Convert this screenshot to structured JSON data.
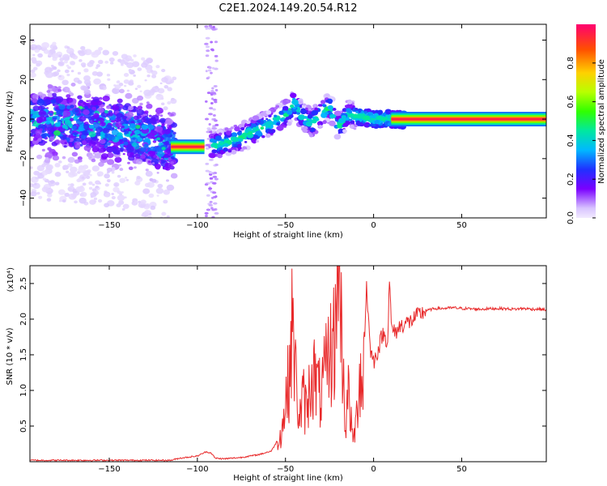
{
  "title": "C2E1.2024.149.20.54.R12",
  "chart_data": [
    {
      "type": "heatmap",
      "xlabel": "Height of straight line (km)",
      "ylabel": "Frequency (Hz)",
      "xlim": [
        -195,
        98
      ],
      "ylim": [
        -50,
        48
      ],
      "xticks": [
        -150,
        -100,
        -50,
        0,
        50
      ],
      "yticks": [
        -40,
        -20,
        0,
        20,
        40
      ],
      "colorbar": {
        "label": "Normalized spectral amplitude",
        "range": [
          0,
          1
        ],
        "ticks": [
          0.0,
          0.2,
          0.4,
          0.6,
          0.8
        ]
      },
      "ridge": [
        {
          "x": -195,
          "y": 0
        },
        {
          "x": -160,
          "y": -3
        },
        {
          "x": -140,
          "y": -6
        },
        {
          "x": -115,
          "y": -14
        },
        {
          "x": -96,
          "y": -14
        },
        {
          "x": -90,
          "y": -13
        },
        {
          "x": -80,
          "y": -11
        },
        {
          "x": -70,
          "y": -7
        },
        {
          "x": -60,
          "y": -3
        },
        {
          "x": -50,
          "y": 2
        },
        {
          "x": -45,
          "y": 8
        },
        {
          "x": -40,
          "y": 1
        },
        {
          "x": -35,
          "y": -2
        },
        {
          "x": -30,
          "y": 3
        },
        {
          "x": -25,
          "y": 6
        },
        {
          "x": -20,
          "y": -4
        },
        {
          "x": -15,
          "y": 2
        },
        {
          "x": -10,
          "y": 2
        },
        {
          "x": 0,
          "y": 0
        },
        {
          "x": 10,
          "y": 0
        },
        {
          "x": 20,
          "y": 0
        },
        {
          "x": 98,
          "y": 0
        }
      ],
      "bands": [
        {
          "x": [
            -115,
            -96
          ],
          "y": -14,
          "amplitude": 0.95
        },
        {
          "x": [
            10,
            98
          ],
          "y": 0,
          "amplitude": 0.95
        }
      ]
    },
    {
      "type": "line",
      "xlabel": "Height of straight line (km)",
      "ylabel": "SNR (10 * v/v)",
      "yscale_label": "(x10⁴)",
      "xlim": [
        -195,
        98
      ],
      "ylim": [
        0,
        2.75
      ],
      "xticks": [
        -150,
        -100,
        -50,
        0,
        50
      ],
      "yticks": [
        0.5,
        1.0,
        1.5,
        2.0,
        2.5
      ],
      "ytick_labels": [
        "0.5",
        "1.0",
        "1.5",
        "2.0",
        "2.5"
      ],
      "color": "#e8292a",
      "series": [
        {
          "x": [
            -195,
            -150,
            -115,
            -110,
            -100,
            -95,
            -92,
            -90,
            -85,
            -75,
            -65,
            -58,
            -55,
            -52,
            -50,
            -48,
            -46,
            -44,
            -42,
            -40,
            -38,
            -35,
            -30,
            -25,
            -22,
            -20,
            -18,
            -16,
            -14,
            -12,
            -10,
            -8,
            -6,
            -4,
            -2,
            0,
            3,
            5,
            8,
            9,
            10,
            12,
            15,
            18,
            20,
            25,
            30,
            35,
            40,
            45,
            50,
            60,
            70,
            80,
            85,
            90,
            95,
            98
          ],
          "y": [
            0.02,
            0.02,
            0.02,
            0.05,
            0.08,
            0.14,
            0.12,
            0.05,
            0.04,
            0.06,
            0.1,
            0.15,
            0.28,
            0.45,
            0.8,
            1.2,
            2.0,
            1.1,
            0.6,
            0.9,
            0.7,
            1.3,
            0.9,
            1.5,
            1.7,
            2.7,
            1.8,
            0.5,
            1.0,
            0.3,
            0.5,
            1.3,
            1.1,
            2.5,
            1.6,
            1.4,
            1.6,
            1.8,
            1.7,
            2.6,
            1.9,
            1.8,
            1.9,
            1.95,
            1.95,
            2.05,
            2.12,
            2.15,
            2.15,
            2.16,
            2.15,
            2.14,
            2.15,
            2.14,
            2.15,
            2.14,
            2.14,
            2.13
          ]
        }
      ]
    }
  ]
}
